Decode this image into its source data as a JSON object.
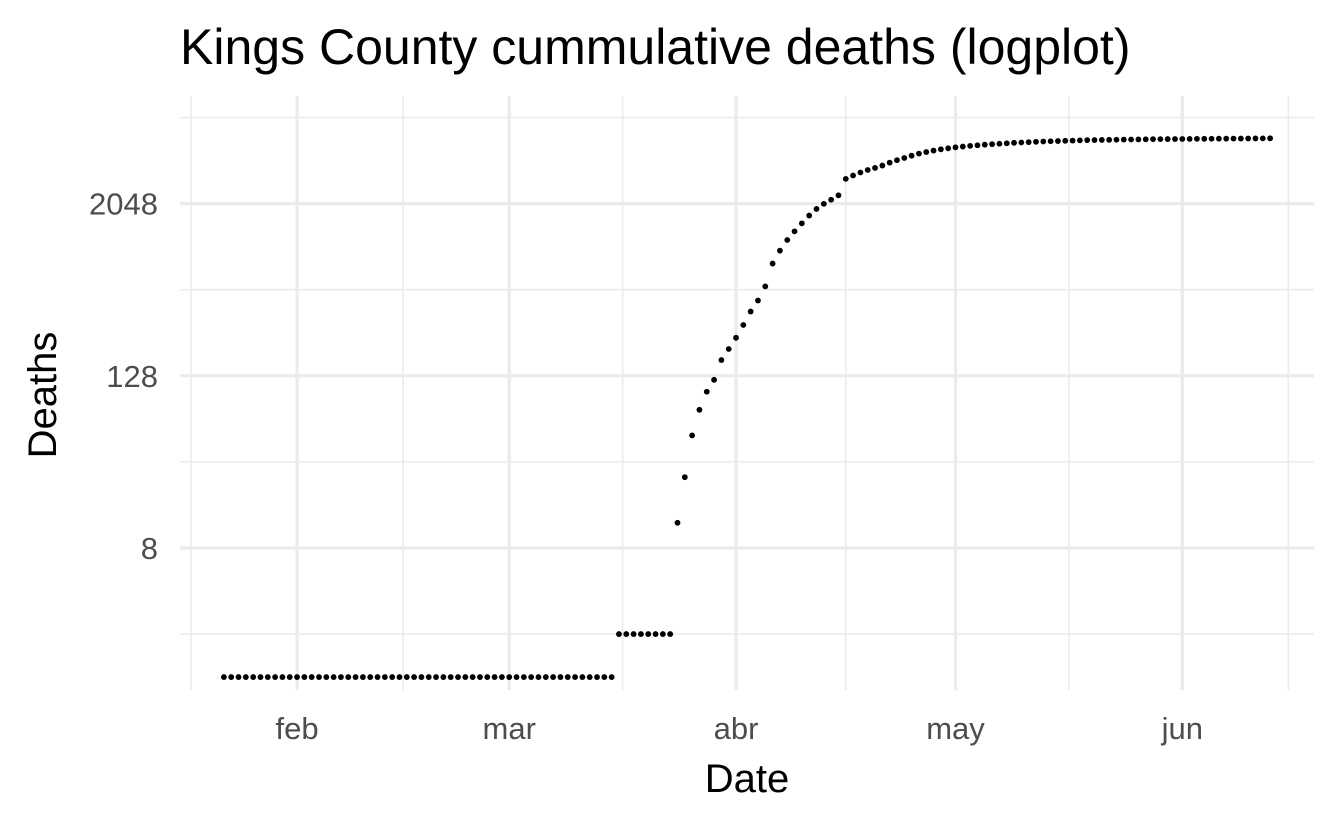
{
  "chart_data": {
    "type": "scatter",
    "title": "Kings County cummulative deaths (logplot)",
    "xlabel": "Date",
    "ylabel": "Deaths",
    "x_scale": "date",
    "y_scale": "log2",
    "grid": true,
    "legend": "none",
    "xlim": [
      "2020-01-16",
      "2020-06-19"
    ],
    "ylim_log2": [
      -0.3,
      13.5
    ],
    "x_ticks": [
      {
        "date": "2020-02-01",
        "label": "feb"
      },
      {
        "date": "2020-03-01",
        "label": "mar"
      },
      {
        "date": "2020-04-01",
        "label": "abr"
      },
      {
        "date": "2020-05-01",
        "label": "may"
      },
      {
        "date": "2020-06-01",
        "label": "jun"
      }
    ],
    "y_ticks": [
      {
        "value": 8,
        "label": "8"
      },
      {
        "value": 128,
        "label": "128"
      },
      {
        "value": 2048,
        "label": "2048"
      }
    ],
    "point_color": "#000000",
    "series": [
      {
        "x": [
          "2020-01-22",
          "2020-01-23",
          "2020-01-24",
          "2020-01-25",
          "2020-01-26",
          "2020-01-27",
          "2020-01-28",
          "2020-01-29",
          "2020-01-30",
          "2020-01-31",
          "2020-02-01",
          "2020-02-02",
          "2020-02-03",
          "2020-02-04",
          "2020-02-05",
          "2020-02-06",
          "2020-02-07",
          "2020-02-08",
          "2020-02-09",
          "2020-02-10",
          "2020-02-11",
          "2020-02-12",
          "2020-02-13",
          "2020-02-14",
          "2020-02-15",
          "2020-02-16",
          "2020-02-17",
          "2020-02-18",
          "2020-02-19",
          "2020-02-20",
          "2020-02-21",
          "2020-02-22",
          "2020-02-23",
          "2020-02-24",
          "2020-02-25",
          "2020-02-26",
          "2020-02-27",
          "2020-02-28",
          "2020-02-29",
          "2020-03-01",
          "2020-03-02",
          "2020-03-03",
          "2020-03-04",
          "2020-03-05",
          "2020-03-06",
          "2020-03-07",
          "2020-03-08",
          "2020-03-09",
          "2020-03-10",
          "2020-03-11",
          "2020-03-12",
          "2020-03-13",
          "2020-03-14",
          "2020-03-15",
          "2020-03-16",
          "2020-03-17",
          "2020-03-18",
          "2020-03-19",
          "2020-03-20",
          "2020-03-21",
          "2020-03-22",
          "2020-03-23",
          "2020-03-24",
          "2020-03-25",
          "2020-03-26",
          "2020-03-27",
          "2020-03-28",
          "2020-03-29",
          "2020-03-30",
          "2020-03-31",
          "2020-04-01",
          "2020-04-02",
          "2020-04-03",
          "2020-04-04",
          "2020-04-05",
          "2020-04-06",
          "2020-04-07",
          "2020-04-08",
          "2020-04-09",
          "2020-04-10",
          "2020-04-11",
          "2020-04-12",
          "2020-04-13",
          "2020-04-14",
          "2020-04-15",
          "2020-04-16",
          "2020-04-17",
          "2020-04-18",
          "2020-04-19",
          "2020-04-20",
          "2020-04-21",
          "2020-04-22",
          "2020-04-23",
          "2020-04-24",
          "2020-04-25",
          "2020-04-26",
          "2020-04-27",
          "2020-04-28",
          "2020-04-29",
          "2020-04-30",
          "2020-05-01",
          "2020-05-02",
          "2020-05-03",
          "2020-05-04",
          "2020-05-05",
          "2020-05-06",
          "2020-05-07",
          "2020-05-08",
          "2020-05-09",
          "2020-05-10",
          "2020-05-11",
          "2020-05-12",
          "2020-05-13",
          "2020-05-14",
          "2020-05-15",
          "2020-05-16",
          "2020-05-17",
          "2020-05-18",
          "2020-05-19",
          "2020-05-20",
          "2020-05-21",
          "2020-05-22",
          "2020-05-23",
          "2020-05-24",
          "2020-05-25",
          "2020-05-26",
          "2020-05-27",
          "2020-05-28",
          "2020-05-29",
          "2020-05-30",
          "2020-05-31",
          "2020-06-01",
          "2020-06-02",
          "2020-06-03",
          "2020-06-04",
          "2020-06-05",
          "2020-06-06",
          "2020-06-07",
          "2020-06-08",
          "2020-06-09",
          "2020-06-10",
          "2020-06-11",
          "2020-06-12",
          "2020-06-13"
        ],
        "y": [
          1,
          1,
          1,
          1,
          1,
          1,
          1,
          1,
          1,
          1,
          1,
          1,
          1,
          1,
          1,
          1,
          1,
          1,
          1,
          1,
          1,
          1,
          1,
          1,
          1,
          1,
          1,
          1,
          1,
          1,
          1,
          1,
          1,
          1,
          1,
          1,
          1,
          1,
          1,
          1,
          1,
          1,
          1,
          1,
          1,
          1,
          1,
          1,
          1,
          1,
          1,
          1,
          1,
          1,
          2,
          2,
          2,
          2,
          2,
          2,
          2,
          2,
          12,
          25,
          49,
          74,
          99,
          120,
          165,
          197,
          236,
          290,
          360,
          430,
          540,
          780,
          960,
          1140,
          1310,
          1490,
          1690,
          1880,
          2040,
          2180,
          2340,
          3050,
          3220,
          3380,
          3520,
          3640,
          3780,
          3960,
          4120,
          4270,
          4430,
          4580,
          4700,
          4810,
          4910,
          4990,
          5070,
          5130,
          5190,
          5240,
          5290,
          5330,
          5370,
          5410,
          5450,
          5480,
          5510,
          5540,
          5570,
          5590,
          5610,
          5630,
          5650,
          5670,
          5690,
          5700,
          5710,
          5720,
          5730,
          5740,
          5750,
          5760,
          5770,
          5780,
          5785,
          5790,
          5795,
          5800,
          5805,
          5810,
          5815,
          5820,
          5825,
          5830,
          5835,
          5840,
          5845,
          5850,
          5855,
          5860
        ]
      }
    ]
  }
}
